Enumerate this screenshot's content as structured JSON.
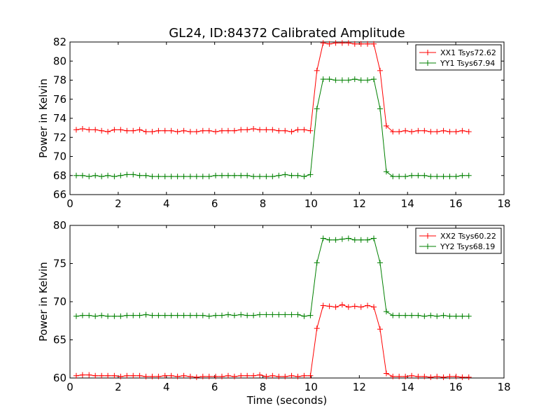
{
  "chart_data": [
    {
      "type": "line",
      "title": "GL24, ID:84372 Calibrated Amplitude",
      "xlabel": "",
      "ylabel": "Power in Kelvin",
      "xlim": [
        0,
        18
      ],
      "ylim": [
        66,
        82
      ],
      "xticks": [
        0,
        2,
        4,
        6,
        8,
        10,
        12,
        14,
        16,
        18
      ],
      "yticks": [
        66,
        68,
        70,
        72,
        74,
        76,
        78,
        80,
        82
      ],
      "legend_position": "top-right",
      "x": [
        0.26,
        0.52,
        0.79,
        1.05,
        1.31,
        1.57,
        1.84,
        2.1,
        2.36,
        2.62,
        2.89,
        3.15,
        3.41,
        3.67,
        3.94,
        4.2,
        4.46,
        4.72,
        4.99,
        5.25,
        5.51,
        5.77,
        6.04,
        6.3,
        6.56,
        6.82,
        7.09,
        7.35,
        7.61,
        7.87,
        8.14,
        8.4,
        8.66,
        8.92,
        9.19,
        9.45,
        9.71,
        9.97,
        10.24,
        10.5,
        10.76,
        11.02,
        11.29,
        11.55,
        11.81,
        12.07,
        12.34,
        12.6,
        12.86,
        13.12,
        13.39,
        13.65,
        13.91,
        14.17,
        14.44,
        14.7,
        14.96,
        15.22,
        15.49,
        15.75,
        16.01,
        16.27,
        16.54
      ],
      "series": [
        {
          "name": "XX1 Tsys72.62",
          "color": "#ff0000",
          "values": [
            72.8,
            72.9,
            72.8,
            72.8,
            72.7,
            72.6,
            72.8,
            72.8,
            72.7,
            72.7,
            72.8,
            72.6,
            72.6,
            72.7,
            72.7,
            72.7,
            72.6,
            72.7,
            72.6,
            72.6,
            72.7,
            72.7,
            72.6,
            72.7,
            72.7,
            72.7,
            72.8,
            72.8,
            72.9,
            72.8,
            72.8,
            72.8,
            72.7,
            72.7,
            72.6,
            72.8,
            72.8,
            72.7,
            79.0,
            81.9,
            81.8,
            81.9,
            81.9,
            81.9,
            81.8,
            81.8,
            81.8,
            81.8,
            79.0,
            73.2,
            72.6,
            72.6,
            72.7,
            72.6,
            72.7,
            72.7,
            72.6,
            72.6,
            72.7,
            72.6,
            72.6,
            72.7,
            72.6
          ]
        },
        {
          "name": "YY1 Tsys67.94",
          "color": "#008000",
          "values": [
            68.0,
            68.0,
            67.9,
            68.0,
            67.9,
            68.0,
            67.9,
            68.0,
            68.1,
            68.1,
            68.0,
            68.0,
            67.9,
            67.9,
            67.9,
            67.9,
            67.9,
            67.9,
            67.9,
            67.9,
            67.9,
            67.9,
            68.0,
            68.0,
            68.0,
            68.0,
            68.0,
            68.0,
            67.9,
            67.9,
            67.9,
            67.9,
            68.0,
            68.1,
            68.0,
            68.0,
            67.9,
            68.1,
            75.0,
            78.1,
            78.1,
            78.0,
            78.0,
            78.0,
            78.1,
            78.0,
            78.0,
            78.1,
            75.0,
            68.4,
            67.9,
            67.9,
            67.9,
            68.0,
            68.0,
            68.0,
            67.9,
            67.9,
            67.9,
            67.9,
            67.9,
            68.0,
            68.0
          ]
        }
      ]
    },
    {
      "type": "line",
      "title": "",
      "xlabel": "Time (seconds)",
      "ylabel": "Power in Kelvin",
      "xlim": [
        0,
        18
      ],
      "ylim": [
        60,
        80
      ],
      "xticks": [
        0,
        2,
        4,
        6,
        8,
        10,
        12,
        14,
        16,
        18
      ],
      "yticks": [
        60,
        65,
        70,
        75,
        80
      ],
      "legend_position": "top-right",
      "x": [
        0.26,
        0.52,
        0.79,
        1.05,
        1.31,
        1.57,
        1.84,
        2.1,
        2.36,
        2.62,
        2.89,
        3.15,
        3.41,
        3.67,
        3.94,
        4.2,
        4.46,
        4.72,
        4.99,
        5.25,
        5.51,
        5.77,
        6.04,
        6.3,
        6.56,
        6.82,
        7.09,
        7.35,
        7.61,
        7.87,
        8.14,
        8.4,
        8.66,
        8.92,
        9.19,
        9.45,
        9.71,
        9.97,
        10.24,
        10.5,
        10.76,
        11.02,
        11.29,
        11.55,
        11.81,
        12.07,
        12.34,
        12.6,
        12.86,
        13.12,
        13.39,
        13.65,
        13.91,
        14.17,
        14.44,
        14.7,
        14.96,
        15.22,
        15.49,
        15.75,
        16.01,
        16.27,
        16.54
      ],
      "series": [
        {
          "name": "XX2 Tsys60.22",
          "color": "#ff0000",
          "values": [
            60.3,
            60.4,
            60.4,
            60.3,
            60.3,
            60.3,
            60.3,
            60.2,
            60.3,
            60.3,
            60.3,
            60.2,
            60.2,
            60.2,
            60.3,
            60.3,
            60.2,
            60.3,
            60.2,
            60.1,
            60.2,
            60.2,
            60.2,
            60.2,
            60.3,
            60.2,
            60.3,
            60.3,
            60.3,
            60.4,
            60.2,
            60.3,
            60.2,
            60.2,
            60.3,
            60.2,
            60.3,
            60.3,
            66.5,
            69.5,
            69.4,
            69.3,
            69.6,
            69.3,
            69.4,
            69.3,
            69.5,
            69.3,
            66.4,
            60.6,
            60.2,
            60.2,
            60.2,
            60.3,
            60.2,
            60.2,
            60.1,
            60.2,
            60.1,
            60.2,
            60.2,
            60.1,
            60.1
          ]
        },
        {
          "name": "YY2 Tsys68.19",
          "color": "#008000",
          "values": [
            68.1,
            68.2,
            68.2,
            68.1,
            68.2,
            68.1,
            68.1,
            68.1,
            68.2,
            68.2,
            68.2,
            68.3,
            68.2,
            68.2,
            68.2,
            68.2,
            68.2,
            68.2,
            68.2,
            68.2,
            68.2,
            68.1,
            68.2,
            68.2,
            68.3,
            68.2,
            68.3,
            68.2,
            68.2,
            68.3,
            68.3,
            68.3,
            68.3,
            68.3,
            68.3,
            68.3,
            68.1,
            68.2,
            75.1,
            78.3,
            78.1,
            78.1,
            78.2,
            78.3,
            78.1,
            78.1,
            78.1,
            78.3,
            75.1,
            68.7,
            68.2,
            68.2,
            68.2,
            68.2,
            68.2,
            68.1,
            68.2,
            68.1,
            68.2,
            68.1,
            68.1,
            68.1,
            68.1
          ]
        }
      ]
    }
  ]
}
